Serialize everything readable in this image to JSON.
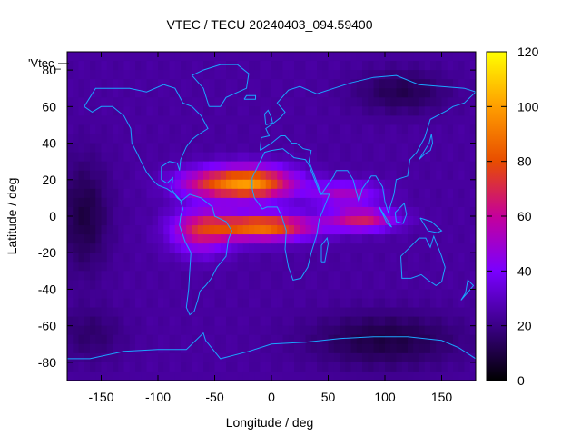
{
  "chart_data": {
    "type": "heatmap",
    "title": "VTEC / TECU 20240403_094.59400",
    "xlabel": "Longitude / deg",
    "ylabel": "Latitude / deg",
    "xlim": [
      -180,
      180
    ],
    "ylim": [
      -90,
      90
    ],
    "x_ticks": [
      -150,
      -100,
      -50,
      0,
      50,
      100,
      150
    ],
    "x_tick_labels": [
      "-150",
      "-100",
      "-50",
      "0",
      "50",
      "100",
      "150"
    ],
    "y_ticks": [
      -80,
      -60,
      -40,
      -20,
      0,
      20,
      40,
      60,
      80
    ],
    "y_tick_labels": [
      "-80",
      "-60",
      "-40",
      "-20",
      "0",
      "20",
      "40",
      "60",
      "80"
    ],
    "colorbar": {
      "range": [
        0,
        120
      ],
      "ticks": [
        0,
        20,
        40,
        60,
        80,
        100,
        120
      ],
      "tick_labels": [
        "0",
        "20",
        "40",
        "60",
        "80",
        "100",
        "120"
      ],
      "palette": [
        "#000000",
        "#3b0087",
        "#7a00ff",
        "#c5009b",
        "#e84d00",
        "#ff9e00",
        "#ffff00"
      ]
    },
    "legend_entry": "'Vtec_",
    "grid_resolution_deg": 5,
    "field_features": [
      {
        "kind": "background",
        "value": 24
      },
      {
        "kind": "peak",
        "lon": -18,
        "lat": 18,
        "value": 95,
        "lon_spread": 38,
        "lat_spread": 9
      },
      {
        "kind": "peak",
        "lon": -8,
        "lat": -6,
        "value": 90,
        "lon_spread": 44,
        "lat_spread": 7
      },
      {
        "kind": "peak",
        "lon": -62,
        "lat": -8,
        "value": 62,
        "lon_spread": 26,
        "lat_spread": 12
      },
      {
        "kind": "peak",
        "lon": 80,
        "lat": -2,
        "value": 66,
        "lon_spread": 30,
        "lat_spread": 6
      },
      {
        "kind": "peak",
        "lon": 65,
        "lat": 12,
        "value": 52,
        "lon_spread": 30,
        "lat_spread": 7
      },
      {
        "kind": "peak",
        "lon": -60,
        "lat": 18,
        "value": 50,
        "lon_spread": 30,
        "lat_spread": 8
      },
      {
        "kind": "trough",
        "lon": -165,
        "lat": 0,
        "value": 10,
        "lon_spread": 22,
        "lat_spread": 30
      },
      {
        "kind": "trough",
        "lon": 100,
        "lat": -68,
        "value": 10,
        "lon_spread": 65,
        "lat_spread": 15
      },
      {
        "kind": "trough",
        "lon": 115,
        "lat": 68,
        "value": 12,
        "lon_spread": 40,
        "lat_spread": 12
      },
      {
        "kind": "trough",
        "lon": -160,
        "lat": -65,
        "value": 16,
        "lon_spread": 30,
        "lat_spread": 15
      }
    ],
    "coastlines": [
      {
        "name": "north-america",
        "points": [
          [
            -165,
            60
          ],
          [
            -155,
            70
          ],
          [
            -140,
            70
          ],
          [
            -125,
            70
          ],
          [
            -110,
            68
          ],
          [
            -95,
            72
          ],
          [
            -85,
            70
          ],
          [
            -78,
            62
          ],
          [
            -70,
            60
          ],
          [
            -62,
            55
          ],
          [
            -56,
            48
          ],
          [
            -66,
            44
          ],
          [
            -70,
            42
          ],
          [
            -75,
            38
          ],
          [
            -80,
            31
          ],
          [
            -81,
            25
          ],
          [
            -83,
            29
          ],
          [
            -90,
            30
          ],
          [
            -97,
            27
          ],
          [
            -97,
            20
          ],
          [
            -92,
            18
          ],
          [
            -87,
            21
          ],
          [
            -88,
            15
          ],
          [
            -83,
            10
          ],
          [
            -79,
            8
          ],
          [
            -85,
            12
          ],
          [
            -92,
            15
          ],
          [
            -100,
            17
          ],
          [
            -105,
            20
          ],
          [
            -110,
            24
          ],
          [
            -115,
            30
          ],
          [
            -118,
            34
          ],
          [
            -123,
            40
          ],
          [
            -124,
            48
          ],
          [
            -130,
            55
          ],
          [
            -140,
            60
          ],
          [
            -150,
            60
          ],
          [
            -158,
            57
          ],
          [
            -165,
            60
          ]
        ]
      },
      {
        "name": "south-america",
        "points": [
          [
            -80,
            8
          ],
          [
            -72,
            12
          ],
          [
            -62,
            10
          ],
          [
            -52,
            5
          ],
          [
            -50,
            0
          ],
          [
            -40,
            -3
          ],
          [
            -35,
            -8
          ],
          [
            -38,
            -13
          ],
          [
            -40,
            -22
          ],
          [
            -48,
            -28
          ],
          [
            -53,
            -34
          ],
          [
            -58,
            -38
          ],
          [
            -63,
            -41
          ],
          [
            -65,
            -46
          ],
          [
            -68,
            -52
          ],
          [
            -72,
            -54
          ],
          [
            -75,
            -50
          ],
          [
            -73,
            -40
          ],
          [
            -72,
            -30
          ],
          [
            -71,
            -20
          ],
          [
            -76,
            -14
          ],
          [
            -81,
            -5
          ],
          [
            -80,
            0
          ],
          [
            -78,
            4
          ],
          [
            -80,
            8
          ]
        ]
      },
      {
        "name": "greenland",
        "points": [
          [
            -55,
            60
          ],
          [
            -45,
            60
          ],
          [
            -40,
            65
          ],
          [
            -22,
            70
          ],
          [
            -20,
            78
          ],
          [
            -30,
            83
          ],
          [
            -45,
            83
          ],
          [
            -60,
            80
          ],
          [
            -70,
            77
          ],
          [
            -60,
            70
          ],
          [
            -55,
            60
          ]
        ]
      },
      {
        "name": "africa",
        "points": [
          [
            -17,
            21
          ],
          [
            -10,
            30
          ],
          [
            -6,
            35
          ],
          [
            0,
            36
          ],
          [
            10,
            37
          ],
          [
            20,
            32
          ],
          [
            30,
            31
          ],
          [
            33,
            28
          ],
          [
            43,
            12
          ],
          [
            51,
            12
          ],
          [
            42,
            -2
          ],
          [
            40,
            -10
          ],
          [
            35,
            -20
          ],
          [
            32,
            -28
          ],
          [
            26,
            -34
          ],
          [
            19,
            -35
          ],
          [
            15,
            -28
          ],
          [
            12,
            -18
          ],
          [
            13,
            -8
          ],
          [
            9,
            0
          ],
          [
            5,
            5
          ],
          [
            -4,
            5
          ],
          [
            -8,
            4
          ],
          [
            -15,
            10
          ],
          [
            -17,
            15
          ],
          [
            -17,
            21
          ]
        ]
      },
      {
        "name": "eurasia",
        "points": [
          [
            -10,
            36
          ],
          [
            -9,
            43
          ],
          [
            -2,
            44
          ],
          [
            -5,
            48
          ],
          [
            2,
            51
          ],
          [
            8,
            54
          ],
          [
            12,
            57
          ],
          [
            5,
            62
          ],
          [
            15,
            69
          ],
          [
            25,
            71
          ],
          [
            40,
            67
          ],
          [
            55,
            70
          ],
          [
            70,
            73
          ],
          [
            90,
            76
          ],
          [
            110,
            77
          ],
          [
            130,
            72
          ],
          [
            150,
            71
          ],
          [
            170,
            70
          ],
          [
            180,
            68
          ],
          [
            170,
            62
          ],
          [
            160,
            60
          ],
          [
            155,
            58
          ],
          [
            140,
            53
          ],
          [
            135,
            43
          ],
          [
            128,
            35
          ],
          [
            122,
            31
          ],
          [
            120,
            22
          ],
          [
            110,
            20
          ],
          [
            108,
            12
          ],
          [
            103,
            2
          ],
          [
            100,
            8
          ],
          [
            98,
            16
          ],
          [
            92,
            22
          ],
          [
            88,
            22
          ],
          [
            80,
            15
          ],
          [
            77,
            8
          ],
          [
            72,
            20
          ],
          [
            67,
            25
          ],
          [
            57,
            25
          ],
          [
            55,
            22
          ],
          [
            44,
            12
          ],
          [
            38,
            22
          ],
          [
            33,
            30
          ],
          [
            35,
            36
          ],
          [
            28,
            37
          ],
          [
            22,
            40
          ],
          [
            18,
            40
          ],
          [
            12,
            44
          ],
          [
            8,
            44
          ],
          [
            0,
            40
          ],
          [
            -10,
            36
          ]
        ]
      },
      {
        "name": "australia",
        "points": [
          [
            114,
            -22
          ],
          [
            115,
            -34
          ],
          [
            123,
            -34
          ],
          [
            132,
            -32
          ],
          [
            138,
            -35
          ],
          [
            145,
            -38
          ],
          [
            150,
            -36
          ],
          [
            153,
            -28
          ],
          [
            150,
            -22
          ],
          [
            143,
            -11
          ],
          [
            140,
            -17
          ],
          [
            136,
            -12
          ],
          [
            130,
            -12
          ],
          [
            122,
            -17
          ],
          [
            114,
            -22
          ]
        ]
      },
      {
        "name": "antarctica",
        "points": [
          [
            -180,
            -78
          ],
          [
            -160,
            -78
          ],
          [
            -130,
            -74
          ],
          [
            -100,
            -73
          ],
          [
            -75,
            -73
          ],
          [
            -60,
            -64
          ],
          [
            -58,
            -68
          ],
          [
            -45,
            -78
          ],
          [
            -20,
            -74
          ],
          [
            0,
            -70
          ],
          [
            30,
            -69
          ],
          [
            60,
            -67
          ],
          [
            90,
            -66
          ],
          [
            120,
            -66
          ],
          [
            150,
            -68
          ],
          [
            165,
            -72
          ],
          [
            180,
            -78
          ]
        ]
      },
      {
        "name": "british-isles",
        "points": [
          [
            -5,
            50
          ],
          [
            1,
            51
          ],
          [
            0,
            54
          ],
          [
            -3,
            58
          ],
          [
            -6,
            56
          ],
          [
            -5,
            50
          ]
        ]
      },
      {
        "name": "japan",
        "points": [
          [
            130,
            31
          ],
          [
            135,
            34
          ],
          [
            140,
            36
          ],
          [
            142,
            40
          ],
          [
            141,
            45
          ],
          [
            139,
            40
          ],
          [
            133,
            34
          ],
          [
            130,
            31
          ]
        ]
      },
      {
        "name": "madagascar",
        "points": [
          [
            44,
            -25
          ],
          [
            47,
            -25
          ],
          [
            50,
            -15
          ],
          [
            49,
            -12
          ],
          [
            44,
            -16
          ],
          [
            44,
            -25
          ]
        ]
      },
      {
        "name": "new-zealand",
        "points": [
          [
            167,
            -46
          ],
          [
            174,
            -41
          ],
          [
            178,
            -38
          ],
          [
            173,
            -35
          ],
          [
            171,
            -42
          ],
          [
            167,
            -46
          ]
        ]
      },
      {
        "name": "borneo",
        "points": [
          [
            109,
            2
          ],
          [
            117,
            7
          ],
          [
            119,
            1
          ],
          [
            116,
            -4
          ],
          [
            110,
            -3
          ],
          [
            109,
            2
          ]
        ]
      },
      {
        "name": "sumatra",
        "points": [
          [
            95,
            5
          ],
          [
            106,
            -6
          ],
          [
            102,
            -4
          ],
          [
            95,
            5
          ]
        ]
      },
      {
        "name": "new-guinea",
        "points": [
          [
            131,
            -1
          ],
          [
            141,
            -3
          ],
          [
            150,
            -8
          ],
          [
            146,
            -9
          ],
          [
            138,
            -8
          ],
          [
            131,
            -1
          ]
        ]
      },
      {
        "name": "iceland",
        "points": [
          [
            -24,
            64
          ],
          [
            -14,
            64
          ],
          [
            -14,
            66
          ],
          [
            -22,
            66
          ],
          [
            -24,
            64
          ]
        ]
      }
    ]
  }
}
